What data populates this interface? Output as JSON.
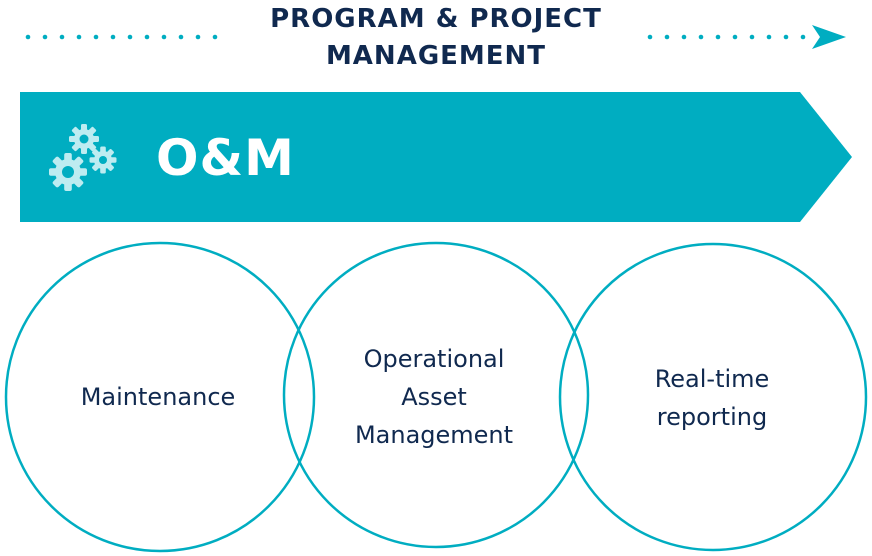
{
  "header": {
    "title_line_1": "PROGRAM & PROJECT",
    "title_line_2": "MANAGEMENT"
  },
  "banner": {
    "label": "O&M",
    "icon": "gears-icon"
  },
  "circles": [
    {
      "lines": [
        "Maintenance"
      ]
    },
    {
      "lines": [
        "Operational",
        "Asset",
        "Management"
      ]
    },
    {
      "lines": [
        "Real-time",
        "reporting"
      ]
    }
  ],
  "colors": {
    "teal": "#00adc1",
    "navy": "#10294f",
    "gear": "#bdecf1",
    "white": "#ffffff"
  }
}
